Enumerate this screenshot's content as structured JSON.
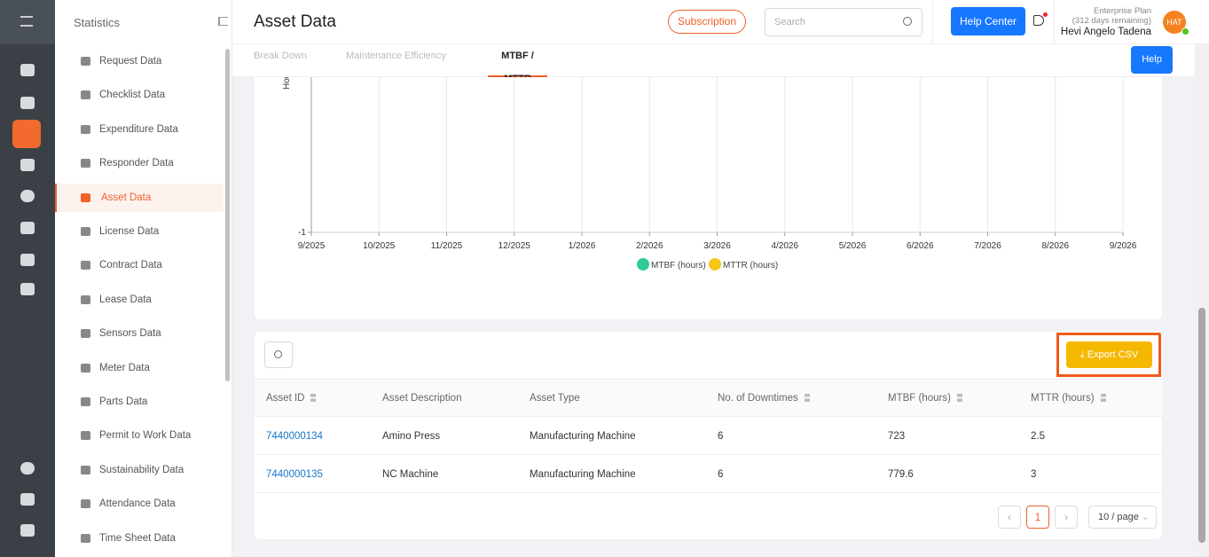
{
  "sidebar": {
    "title": "Statistics",
    "items": [
      "Request Data",
      "Checklist Data",
      "Expenditure Data",
      "Responder Data",
      "Asset Data",
      "License Data",
      "Contract Data",
      "Lease Data",
      "Sensors Data",
      "Meter Data",
      "Parts Data",
      "Permit to Work Data",
      "Sustainability Data",
      "Attendance Data",
      "Time Sheet Data"
    ]
  },
  "header": {
    "title": "Asset Data",
    "subscription": "Subscription",
    "search_placeholder": "Search",
    "help_center": "Help Center",
    "plan": "Enterprise Plan",
    "plan_remaining": "(312 days remaining)",
    "user": "Hevi Angelo Tadena",
    "avatar": "HAT"
  },
  "tabs": {
    "items": [
      "Break Down",
      "Maintenance Efficiency",
      "MTBF / MTTR"
    ],
    "help": "Help"
  },
  "chart_data": {
    "type": "line",
    "y_label": "Hours",
    "x": [
      "9/2025",
      "10/2025",
      "11/2025",
      "12/2025",
      "1/2026",
      "2/2026",
      "3/2026",
      "4/2026",
      "5/2026",
      "6/2026",
      "7/2026",
      "8/2026",
      "9/2026"
    ],
    "series": [
      {
        "name": "MTBF (hours)",
        "color": "#2ecc9a",
        "values": [
          null,
          null,
          null,
          null,
          null,
          null,
          null,
          null,
          null,
          null,
          null,
          null,
          null
        ]
      },
      {
        "name": "MTTR (hours)",
        "color": "#f5c518",
        "values": [
          null,
          null,
          null,
          null,
          null,
          null,
          null,
          null,
          null,
          null,
          null,
          null,
          null
        ]
      }
    ],
    "ylim": [
      -1,
      1
    ],
    "yticks": [
      -1
    ],
    "grid": true
  },
  "table": {
    "export": "Export CSV",
    "columns": [
      "Asset ID",
      "Asset Description",
      "Asset Type",
      "No. of Downtimes",
      "MTBF (hours)",
      "MTTR (hours)"
    ],
    "rows": [
      [
        "7440000134",
        "Amino Press",
        "Manufacturing Machine",
        6,
        723,
        2.5
      ],
      [
        "7440000135",
        "NC Machine",
        "Manufacturing Machine",
        6,
        779.6,
        3
      ]
    ]
  },
  "pagination": {
    "current": 1,
    "page_size": "10 / page"
  }
}
